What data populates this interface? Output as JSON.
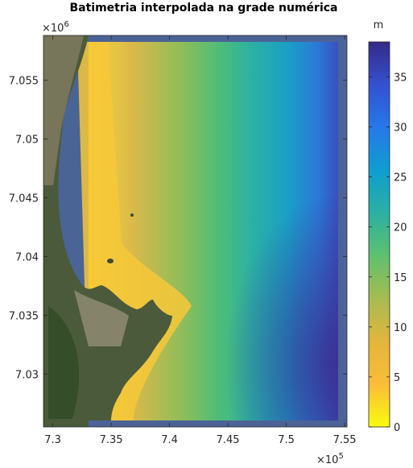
{
  "chart_data": {
    "type": "heatmap",
    "title": "Batimetria interpolada na grade numérica",
    "xlabel": "",
    "ylabel": "",
    "x_ticks": [
      7.3,
      7.35,
      7.4,
      7.45,
      7.5,
      7.55
    ],
    "x_tick_labels": [
      "7.3",
      "7.35",
      "7.4",
      "7.45",
      "7.5",
      "7.55"
    ],
    "x_exponent_label": "×10",
    "x_exponent_power": "5",
    "xlim": [
      7.292,
      7.552
    ],
    "y_ticks": [
      7.03,
      7.035,
      7.04,
      7.045,
      7.05,
      7.055
    ],
    "y_tick_labels": [
      "7.03",
      "7.035",
      "7.04",
      "7.045",
      "7.05",
      "7.055"
    ],
    "y_exponent_label": "×10",
    "y_exponent_power": "6",
    "ylim": [
      7.0255,
      7.0588
    ],
    "colorbar": {
      "unit_label": "m",
      "ticks": [
        0,
        5,
        10,
        15,
        20,
        25,
        30,
        35
      ],
      "tick_labels": [
        "0",
        "5",
        "10",
        "15",
        "20",
        "25",
        "30",
        "35"
      ],
      "range": [
        0,
        38.5
      ],
      "colormap": [
        "#f9fb0e",
        "#fbbd38",
        "#e3b53c",
        "#a6bc51",
        "#5fc06e",
        "#2bb0a2",
        "#0e9ed0",
        "#2778e8",
        "#3451d0",
        "#352a87"
      ]
    },
    "grid": false,
    "depth_profile_east_m": [
      [
        7.3,
        0
      ],
      [
        7.32,
        4
      ],
      [
        7.35,
        10
      ],
      [
        7.4,
        15
      ],
      [
        7.45,
        21
      ],
      [
        7.5,
        28
      ],
      [
        7.545,
        37
      ]
    ]
  }
}
